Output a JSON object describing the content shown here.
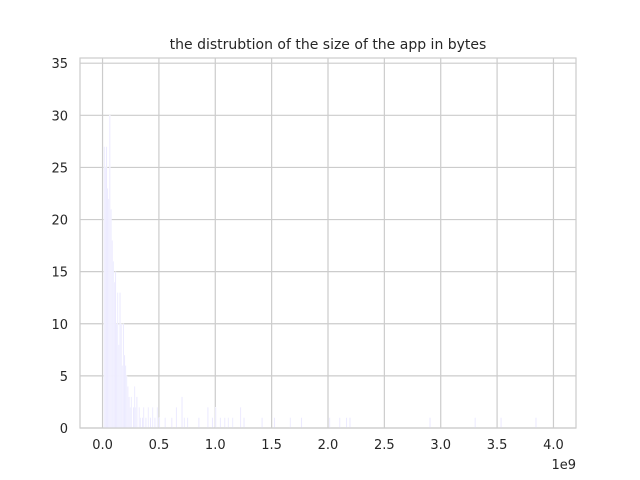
{
  "chart_data": {
    "type": "histogram",
    "title": "the distrubtion of the size of the app in bytes",
    "xlabel": "",
    "ylabel": "",
    "x_offset_label": "1e9",
    "xlim": [
      -0.2,
      4.2
    ],
    "ylim": [
      0,
      35.5
    ],
    "x_ticks": [
      0.0,
      0.5,
      1.0,
      1.5,
      2.0,
      2.5,
      3.0,
      3.5,
      4.0
    ],
    "x_tick_labels": [
      "0.0",
      "0.5",
      "1.0",
      "1.5",
      "2.0",
      "2.5",
      "3.0",
      "3.5",
      "4.0"
    ],
    "y_ticks": [
      0,
      5,
      10,
      15,
      20,
      25,
      30,
      35
    ],
    "y_tick_labels": [
      "0",
      "5",
      "10",
      "15",
      "20",
      "25",
      "30",
      "35"
    ],
    "grid": true,
    "colors": {
      "bar_fill": "#e8e6ff",
      "bar_edge": "#ffffff",
      "grid": "#cccccc",
      "axes": "#cccccc",
      "text": "#262626",
      "background": "#ffffff"
    },
    "bins": [
      {
        "x": 0.01,
        "count": 27
      },
      {
        "x": 0.02,
        "count": 25
      },
      {
        "x": 0.03,
        "count": 27
      },
      {
        "x": 0.04,
        "count": 23
      },
      {
        "x": 0.05,
        "count": 22
      },
      {
        "x": 0.06,
        "count": 30
      },
      {
        "x": 0.07,
        "count": 21
      },
      {
        "x": 0.08,
        "count": 18
      },
      {
        "x": 0.09,
        "count": 16
      },
      {
        "x": 0.1,
        "count": 14
      },
      {
        "x": 0.11,
        "count": 15
      },
      {
        "x": 0.12,
        "count": 10
      },
      {
        "x": 0.13,
        "count": 13
      },
      {
        "x": 0.14,
        "count": 8
      },
      {
        "x": 0.15,
        "count": 13
      },
      {
        "x": 0.16,
        "count": 10
      },
      {
        "x": 0.17,
        "count": 6
      },
      {
        "x": 0.18,
        "count": 10
      },
      {
        "x": 0.19,
        "count": 7
      },
      {
        "x": 0.2,
        "count": 6
      },
      {
        "x": 0.21,
        "count": 5
      },
      {
        "x": 0.22,
        "count": 4
      },
      {
        "x": 0.23,
        "count": 3
      },
      {
        "x": 0.24,
        "count": 2
      },
      {
        "x": 0.25,
        "count": 3
      },
      {
        "x": 0.27,
        "count": 2
      },
      {
        "x": 0.28,
        "count": 4
      },
      {
        "x": 0.29,
        "count": 2
      },
      {
        "x": 0.3,
        "count": 3
      },
      {
        "x": 0.32,
        "count": 2
      },
      {
        "x": 0.33,
        "count": 1
      },
      {
        "x": 0.35,
        "count": 1
      },
      {
        "x": 0.36,
        "count": 2
      },
      {
        "x": 0.38,
        "count": 1
      },
      {
        "x": 0.4,
        "count": 2
      },
      {
        "x": 0.42,
        "count": 1
      },
      {
        "x": 0.44,
        "count": 2
      },
      {
        "x": 0.46,
        "count": 1
      },
      {
        "x": 0.48,
        "count": 2
      },
      {
        "x": 0.5,
        "count": 1
      },
      {
        "x": 0.55,
        "count": 1
      },
      {
        "x": 0.61,
        "count": 1
      },
      {
        "x": 0.65,
        "count": 2
      },
      {
        "x": 0.7,
        "count": 3
      },
      {
        "x": 0.72,
        "count": 1
      },
      {
        "x": 0.75,
        "count": 1
      },
      {
        "x": 0.85,
        "count": 1
      },
      {
        "x": 0.93,
        "count": 2
      },
      {
        "x": 0.97,
        "count": 1
      },
      {
        "x": 1.0,
        "count": 2
      },
      {
        "x": 1.04,
        "count": 1
      },
      {
        "x": 1.08,
        "count": 1
      },
      {
        "x": 1.11,
        "count": 1
      },
      {
        "x": 1.15,
        "count": 1
      },
      {
        "x": 1.22,
        "count": 2
      },
      {
        "x": 1.25,
        "count": 1
      },
      {
        "x": 1.41,
        "count": 1
      },
      {
        "x": 1.52,
        "count": 1
      },
      {
        "x": 1.66,
        "count": 1
      },
      {
        "x": 1.76,
        "count": 1
      },
      {
        "x": 2.01,
        "count": 1
      },
      {
        "x": 2.1,
        "count": 1
      },
      {
        "x": 2.16,
        "count": 1
      },
      {
        "x": 2.19,
        "count": 1
      },
      {
        "x": 2.9,
        "count": 1
      },
      {
        "x": 3.3,
        "count": 1
      },
      {
        "x": 3.53,
        "count": 1
      },
      {
        "x": 3.84,
        "count": 1
      }
    ],
    "bin_width": 0.01
  }
}
